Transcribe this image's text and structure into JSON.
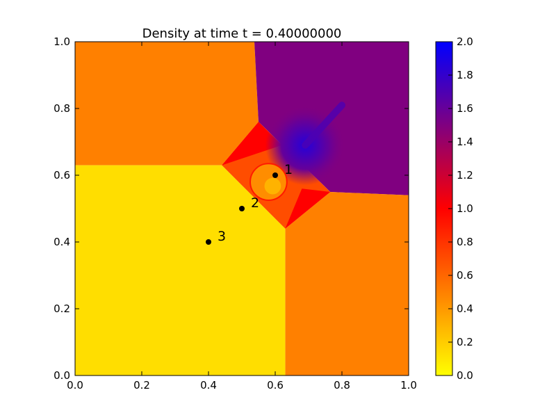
{
  "chart_data": {
    "type": "heatmap",
    "title": "Density at time t =     0.40000000",
    "xlim": [
      0.0,
      1.0
    ],
    "ylim": [
      0.0,
      1.0
    ],
    "xticks": [
      "0.0",
      "0.2",
      "0.4",
      "0.6",
      "0.8",
      "1.0"
    ],
    "yticks": [
      "0.0",
      "0.2",
      "0.4",
      "0.6",
      "0.8",
      "1.0"
    ],
    "colorbar": {
      "range": [
        0.0,
        2.0
      ],
      "ticks": [
        "0.0",
        "0.2",
        "0.4",
        "0.6",
        "0.8",
        "1.0",
        "1.2",
        "1.4",
        "1.6",
        "1.8",
        "2.0"
      ],
      "colormap_stops": [
        {
          "value": 0.0,
          "color": "#ffff00"
        },
        {
          "value": 0.5,
          "color": "#ff8000"
        },
        {
          "value": 1.0,
          "color": "#ff0000"
        },
        {
          "value": 1.5,
          "color": "#800080"
        },
        {
          "value": 2.0,
          "color": "#0000ff"
        }
      ]
    },
    "regions": [
      {
        "name": "top-left",
        "value": 0.5,
        "vertices": [
          [
            0,
            1
          ],
          [
            0.5375,
            1
          ],
          [
            0.55,
            0.76
          ],
          [
            0.44,
            0.63
          ],
          [
            0,
            0.63
          ]
        ]
      },
      {
        "name": "top-right",
        "value": 1.5,
        "vertices": [
          [
            0.5375,
            1
          ],
          [
            1,
            1
          ],
          [
            1,
            0.54
          ],
          [
            0.765,
            0.55
          ],
          [
            0.55,
            0.76
          ]
        ]
      },
      {
        "name": "bottom-right",
        "value": 0.5,
        "vertices": [
          [
            0.63,
            0
          ],
          [
            1,
            0
          ],
          [
            1,
            0.54
          ],
          [
            0.765,
            0.55
          ],
          [
            0.63,
            0.44
          ]
        ]
      },
      {
        "name": "bottom-left",
        "value": 0.13,
        "vertices": [
          [
            0,
            0
          ],
          [
            0.63,
            0
          ],
          [
            0.63,
            0.44
          ],
          [
            0.44,
            0.63
          ],
          [
            0,
            0.63
          ]
        ]
      },
      {
        "name": "center",
        "value": 0.7,
        "vertices": [
          [
            0.44,
            0.63
          ],
          [
            0.55,
            0.76
          ],
          [
            0.765,
            0.55
          ],
          [
            0.63,
            0.44
          ]
        ]
      },
      {
        "name": "shear-top",
        "value": 1.0,
        "vertices": [
          [
            0.44,
            0.63
          ],
          [
            0.55,
            0.76
          ],
          [
            0.62,
            0.69
          ]
        ]
      },
      {
        "name": "shear-bottom",
        "value": 1.0,
        "vertices": [
          [
            0.63,
            0.44
          ],
          [
            0.765,
            0.55
          ],
          [
            0.68,
            0.56
          ]
        ]
      }
    ],
    "features": [
      {
        "name": "jet-disk",
        "value": 1.75,
        "center": [
          0.69,
          0.69
        ],
        "radius": 0.12
      },
      {
        "name": "jet-stem",
        "value": 1.7,
        "from": [
          0.69,
          0.69
        ],
        "to": [
          0.8,
          0.81
        ]
      },
      {
        "name": "vortex",
        "value": 0.45,
        "center": [
          0.58,
          0.58
        ],
        "radius": 0.055
      }
    ],
    "points": [
      {
        "label": "1",
        "x": 0.6,
        "y": 0.6
      },
      {
        "label": "2",
        "x": 0.5,
        "y": 0.5
      },
      {
        "label": "3",
        "x": 0.4,
        "y": 0.4
      }
    ]
  }
}
